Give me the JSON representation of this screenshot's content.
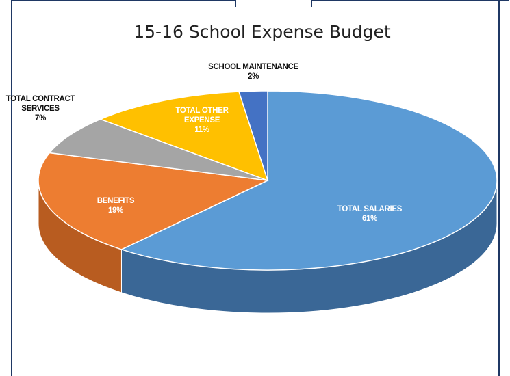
{
  "chart_data": {
    "type": "pie",
    "title": "15-16 School Expense Budget",
    "slices": [
      {
        "name": "TOTAL SALARIES",
        "percent_label": "61%",
        "value": 61,
        "color": "#5b9bd5",
        "side_color": "#3a6796",
        "label_lines": [
          "TOTAL SALARIES",
          "61%"
        ],
        "label_color": "light"
      },
      {
        "name": "BENEFITS",
        "percent_label": "19%",
        "value": 19,
        "color": "#ed7d31",
        "side_color": "#b85c20",
        "label_lines": [
          "BENEFITS",
          "19%"
        ],
        "label_color": "light"
      },
      {
        "name": "TOTAL CONTRACT SERVICES",
        "percent_label": "7%",
        "value": 7,
        "color": "#a5a5a5",
        "side_color": "#7c7c7c",
        "label_lines": [
          "TOTAL CONTRACT",
          "SERVICES",
          "7%"
        ],
        "label_color": "dark"
      },
      {
        "name": "TOTAL OTHER EXPENSE",
        "percent_label": "11%",
        "value": 11,
        "color": "#ffc000",
        "side_color": "#c79500",
        "label_lines": [
          "TOTAL OTHER",
          "EXPENSE",
          "11%"
        ],
        "label_color": "light"
      },
      {
        "name": "SCHOOL MAINTENANCE",
        "percent_label": "2%",
        "value": 2,
        "color": "#4472c4",
        "side_color": "#2f5597",
        "label_lines": [
          "SCHOOL MAINTENANCE",
          "2%"
        ],
        "label_color": "dark"
      }
    ],
    "legend": "none",
    "style": "3d-pie"
  },
  "colors": {
    "frame_border": "#1f3864"
  }
}
